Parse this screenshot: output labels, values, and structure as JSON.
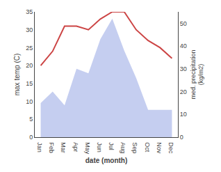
{
  "chart_data": {
    "type": "line",
    "xlabel": "date (month)",
    "ylabel": "max temp (C)",
    "y2label": "med. precipitation\n(kg/m2)",
    "categories": [
      "Jan",
      "Feb",
      "Mar",
      "Apr",
      "May",
      "Jun",
      "Jul",
      "Aug",
      "Sep",
      "Oct",
      "Nov",
      "Dec"
    ],
    "series": [
      {
        "type": "area",
        "axis": "y2",
        "color": "#c5cef0",
        "values": [
          15,
          20,
          14,
          30,
          28,
          43,
          52,
          38,
          26,
          12,
          12,
          12
        ]
      },
      {
        "type": "line",
        "color": "#cc4444",
        "values": [
          20,
          24,
          31,
          31,
          30,
          33,
          35,
          35,
          30,
          27,
          25,
          22
        ]
      }
    ],
    "ylim": [
      0,
      35
    ],
    "yticks": [
      0,
      5,
      10,
      15,
      20,
      25,
      30,
      35
    ],
    "y2lim": [
      0,
      55
    ],
    "y2ticks": [
      0,
      10,
      20,
      30,
      40,
      50
    ],
    "grid": false
  }
}
